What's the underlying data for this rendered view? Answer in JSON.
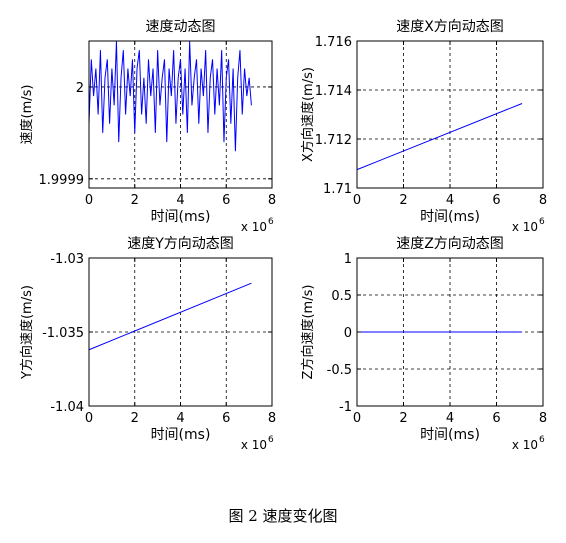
{
  "caption": "图 2  速度变化图",
  "chart_data": [
    {
      "type": "line",
      "title": "速度动态图",
      "xlabel": "时间(ms)",
      "ylabel": "速度(m/s)",
      "x_multiplier": "x 10",
      "x_exponent": "6",
      "xlim": [
        0,
        8
      ],
      "ylim": [
        1.99989,
        2.00005
      ],
      "xticks": [
        0,
        2,
        4,
        6,
        8
      ],
      "xtick_labels": [
        "0",
        "2",
        "4",
        "6",
        "8"
      ],
      "yticks": [
        1.9999,
        2
      ],
      "ytick_labels": [
        "1.9999",
        "2"
      ],
      "grid": true,
      "series": [
        {
          "color": "#0000ff",
          "x": [
            0,
            0.1,
            0.2,
            0.3,
            0.4,
            0.5,
            0.6,
            0.7,
            0.8,
            0.9,
            1.0,
            1.1,
            1.2,
            1.3,
            1.4,
            1.5,
            1.6,
            1.7,
            1.8,
            1.9,
            2.0,
            2.1,
            2.2,
            2.3,
            2.4,
            2.5,
            2.6,
            2.7,
            2.8,
            2.9,
            3.0,
            3.1,
            3.2,
            3.3,
            3.4,
            3.5,
            3.6,
            3.7,
            3.8,
            3.9,
            4.0,
            4.1,
            4.2,
            4.3,
            4.4,
            4.5,
            4.6,
            4.7,
            4.8,
            4.9,
            5.0,
            5.1,
            5.2,
            5.3,
            5.4,
            5.5,
            5.6,
            5.7,
            5.8,
            5.9,
            6.0,
            6.1,
            6.2,
            6.3,
            6.4,
            6.5,
            6.6,
            6.7,
            6.8,
            6.9,
            7.0,
            7.1
          ],
          "y": [
            1.99996,
            2.00003,
            1.99999,
            2.00002,
            1.99997,
            2.00004,
            1.99995,
            2.00001,
            2.00003,
            1.99996,
            2.00002,
            1.99998,
            2.00005,
            1.99994,
            2.00001,
            2.00004,
            1.99997,
            2.00002,
            1.99999,
            2.00003,
            1.99995,
            2.00002,
            2.00004,
            1.99997,
            2.00001,
            1.99996,
            2.00003,
            1.99999,
            2.00002,
            1.99995,
            2.00004,
            1.99998,
            2.00001,
            2.00003,
            1.99994,
            2.00002,
            1.99999,
            2.00004,
            1.99996,
            2.00001,
            2.00003,
            1.99997,
            2.00002,
            1.99995,
            2.00005,
            1.99998,
            2.00001,
            2.00003,
            1.99996,
            2.00002,
            1.99999,
            2.00004,
            1.99995,
            2.00001,
            2.00003,
            1.99997,
            2.00002,
            1.99998,
            2.00004,
            1.99994,
            2.00001,
            2.00003,
            1.99996,
            2.00002,
            1.99993,
            2.00001,
            2.00004,
            1.99997,
            2.00002,
            1.99999,
            2.00001,
            1.99998
          ]
        }
      ]
    },
    {
      "type": "line",
      "title": "速度X方向动态图",
      "xlabel": "时间(ms)",
      "ylabel": "X方向速度(m/s)",
      "x_multiplier": "x 10",
      "x_exponent": "6",
      "xlim": [
        0,
        8
      ],
      "ylim": [
        1.71,
        1.716
      ],
      "xticks": [
        0,
        2,
        4,
        6,
        8
      ],
      "xtick_labels": [
        "0",
        "2",
        "4",
        "6",
        "8"
      ],
      "yticks": [
        1.71,
        1.712,
        1.714,
        1.716
      ],
      "ytick_labels": [
        "1.71",
        "1.712",
        "1.714",
        "1.716"
      ],
      "grid": true,
      "series": [
        {
          "color": "#0000ff",
          "x": [
            0,
            7.1
          ],
          "y": [
            1.71075,
            1.71345
          ]
        }
      ]
    },
    {
      "type": "line",
      "title": "速度Y方向动态图",
      "xlabel": "时间(ms)",
      "ylabel": "Y方向速度(m/s)",
      "x_multiplier": "x 10",
      "x_exponent": "6",
      "xlim": [
        0,
        8
      ],
      "ylim": [
        -1.04,
        -1.03
      ],
      "xticks": [
        0,
        2,
        4,
        6,
        8
      ],
      "xtick_labels": [
        "0",
        "2",
        "4",
        "6",
        "8"
      ],
      "yticks": [
        -1.04,
        -1.035,
        -1.03
      ],
      "ytick_labels": [
        "-1.04",
        "-1.035",
        "-1.03"
      ],
      "grid": true,
      "series": [
        {
          "color": "#0000ff",
          "x": [
            0,
            7.1
          ],
          "y": [
            -1.0362,
            -1.0317
          ]
        }
      ]
    },
    {
      "type": "line",
      "title": "速度Z方向动态图",
      "xlabel": "时间(ms)",
      "ylabel": "Z方向速度(m/s)",
      "x_multiplier": "x 10",
      "x_exponent": "6",
      "xlim": [
        0,
        8
      ],
      "ylim": [
        -1,
        1
      ],
      "xticks": [
        0,
        2,
        4,
        6,
        8
      ],
      "xtick_labels": [
        "0",
        "2",
        "4",
        "6",
        "8"
      ],
      "yticks": [
        -1,
        -0.5,
        0,
        0.5,
        1
      ],
      "ytick_labels": [
        "-1",
        "-0.5",
        "0",
        "0.5",
        "1"
      ],
      "grid": true,
      "series": [
        {
          "color": "#0000ff",
          "x": [
            0,
            7.1
          ],
          "y": [
            0,
            0
          ]
        }
      ]
    }
  ]
}
